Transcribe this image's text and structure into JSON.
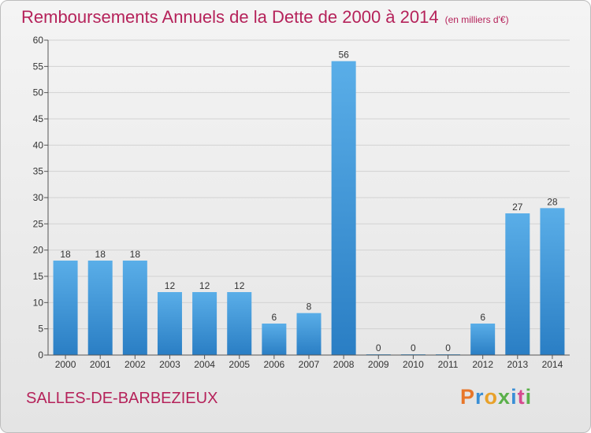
{
  "header": {
    "title": "Remboursements Annuels de la Dette de 2000 à 2014",
    "unit": "(en milliers d'€)"
  },
  "footer": {
    "commune": "SALLES-DE-BARBEZIEUX",
    "logo": "Proxiti"
  },
  "colors": {
    "bar_top": "#5aaee8",
    "bar_bottom": "#2a7ec4",
    "title": "#b5225a",
    "logo_letters": [
      "#e8772a",
      "#3a8fd6",
      "#e8a12a",
      "#5ab04a",
      "#3a8fd6",
      "#d64a8f",
      "#5ab04a"
    ]
  },
  "chart_data": {
    "type": "bar",
    "title": "Remboursements Annuels de la Dette de 2000 à 2014",
    "categories": [
      "2000",
      "2001",
      "2002",
      "2003",
      "2004",
      "2005",
      "2006",
      "2007",
      "2008",
      "2009",
      "2010",
      "2011",
      "2012",
      "2013",
      "2014"
    ],
    "values": [
      18,
      18,
      18,
      12,
      12,
      12,
      6,
      8,
      56,
      0,
      0,
      0,
      6,
      27,
      28
    ],
    "ylim": [
      0,
      60
    ],
    "yticks": [
      0,
      5,
      10,
      15,
      20,
      25,
      30,
      35,
      40,
      45,
      50,
      55,
      60
    ],
    "grid": true
  }
}
